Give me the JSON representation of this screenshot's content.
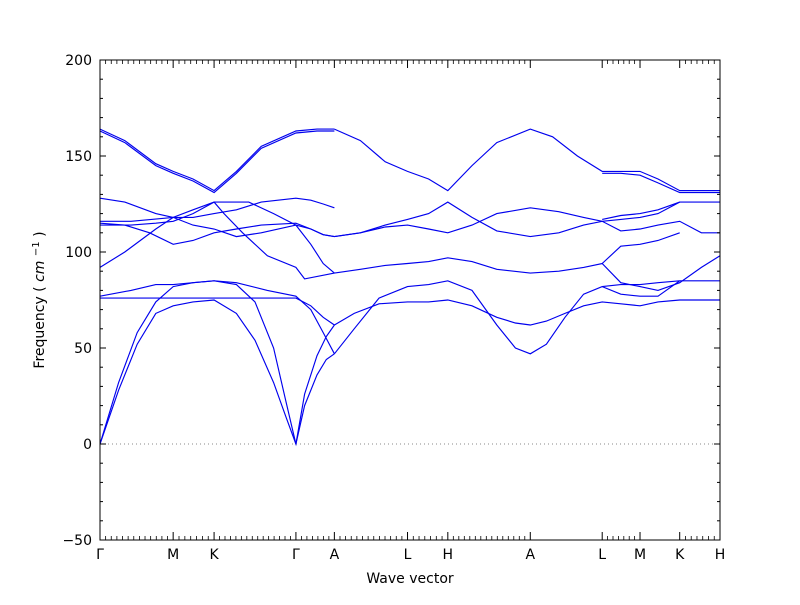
{
  "chart_data": {
    "type": "line",
    "title": "",
    "xlabel": "Wave vector",
    "ylabel": "Frequency",
    "ylabel_unit": "cm",
    "ylabel_unit_exp": "−1",
    "ylim": [
      -50,
      200
    ],
    "y_ticks": [
      -50,
      0,
      50,
      100,
      150,
      200
    ],
    "y_tick_labels": [
      "−50",
      "0",
      "50",
      "100",
      "150",
      "200"
    ],
    "grid": false,
    "legend": "none",
    "line_color": "#0000ee",
    "zero_line": {
      "y": 0,
      "style": "dotted",
      "color": "#888888"
    },
    "path_segments": [
      {
        "from": "Γ",
        "to": "M",
        "x_start": 0.0,
        "x_end": 0.118
      },
      {
        "from": "M",
        "to": "K",
        "x_start": 0.118,
        "x_end": 0.184
      },
      {
        "from": "K",
        "to": "Γ",
        "x_start": 0.184,
        "x_end": 0.316
      },
      {
        "from": "Γ",
        "to": "A",
        "x_start": 0.316,
        "x_end": 0.378
      },
      {
        "from": "A",
        "to": "L",
        "x_start": 0.378,
        "x_end": 0.496
      },
      {
        "from": "L",
        "to": "H",
        "x_start": 0.496,
        "x_end": 0.561
      },
      {
        "from": "H",
        "to": "A",
        "x_start": 0.561,
        "x_end": 0.694
      },
      {
        "from": "L",
        "to": "M",
        "x_start": 0.81,
        "x_end": 0.871
      },
      {
        "from": "K",
        "to": "H",
        "x_start": 0.935,
        "x_end": 1.0
      }
    ],
    "high_symmetry_points": [
      {
        "label": "Γ",
        "x": 0.0
      },
      {
        "label": "M",
        "x": 0.118
      },
      {
        "label": "K",
        "x": 0.184
      },
      {
        "label": "Γ",
        "x": 0.316
      },
      {
        "label": "A",
        "x": 0.378
      },
      {
        "label": "L",
        "x": 0.496
      },
      {
        "label": "H",
        "x": 0.561
      },
      {
        "label": "A",
        "x": 0.694
      },
      {
        "label": "L",
        "x": 0.81
      },
      {
        "label": "M",
        "x": 0.871
      },
      {
        "label": "K",
        "x": 0.935
      },
      {
        "label": "H",
        "x": 1.0
      }
    ],
    "xlim": [
      0.0,
      1.0
    ],
    "series": [
      {
        "values": [
          [
            0.0,
            0
          ],
          [
            0.03,
            32
          ],
          [
            0.06,
            58
          ],
          [
            0.09,
            74
          ],
          [
            0.118,
            82
          ],
          [
            0.15,
            84
          ],
          [
            0.184,
            85
          ],
          [
            0.22,
            83
          ],
          [
            0.25,
            74
          ],
          [
            0.28,
            50
          ],
          [
            0.3,
            22
          ],
          [
            0.316,
            0
          ],
          [
            0.33,
            20
          ],
          [
            0.35,
            36
          ],
          [
            0.365,
            44
          ],
          [
            0.378,
            47
          ]
        ]
      },
      {
        "values": [
          [
            0.0,
            0
          ],
          [
            0.03,
            28
          ],
          [
            0.06,
            52
          ],
          [
            0.09,
            68
          ],
          [
            0.118,
            72
          ],
          [
            0.15,
            74
          ],
          [
            0.184,
            75
          ],
          [
            0.22,
            68
          ],
          [
            0.25,
            54
          ],
          [
            0.28,
            32
          ],
          [
            0.3,
            14
          ],
          [
            0.316,
            0
          ],
          [
            0.33,
            26
          ],
          [
            0.35,
            46
          ],
          [
            0.365,
            56
          ],
          [
            0.378,
            62
          ]
        ]
      },
      {
        "values": [
          [
            0.0,
            76
          ],
          [
            0.06,
            76
          ],
          [
            0.118,
            76
          ],
          [
            0.15,
            76
          ],
          [
            0.184,
            76
          ],
          [
            0.23,
            76
          ],
          [
            0.28,
            76
          ],
          [
            0.316,
            76
          ],
          [
            0.34,
            72
          ],
          [
            0.36,
            66
          ],
          [
            0.378,
            62
          ]
        ]
      },
      {
        "values": [
          [
            0.0,
            77
          ],
          [
            0.05,
            80
          ],
          [
            0.09,
            83
          ],
          [
            0.118,
            83
          ],
          [
            0.15,
            84
          ],
          [
            0.184,
            85
          ],
          [
            0.22,
            84
          ],
          [
            0.27,
            80
          ],
          [
            0.316,
            77
          ],
          [
            0.34,
            70
          ],
          [
            0.36,
            58
          ],
          [
            0.378,
            47
          ]
        ]
      },
      {
        "values": [
          [
            0.0,
            92
          ],
          [
            0.04,
            100
          ],
          [
            0.09,
            112
          ],
          [
            0.118,
            118
          ],
          [
            0.15,
            122
          ],
          [
            0.184,
            126
          ],
          [
            0.2,
            120
          ],
          [
            0.23,
            110
          ],
          [
            0.27,
            98
          ],
          [
            0.316,
            92
          ],
          [
            0.33,
            86
          ],
          [
            0.378,
            89
          ]
        ]
      },
      {
        "values": [
          [
            0.0,
            114
          ],
          [
            0.05,
            114
          ],
          [
            0.09,
            115
          ],
          [
            0.118,
            116
          ],
          [
            0.15,
            120
          ],
          [
            0.184,
            126
          ],
          [
            0.21,
            126
          ],
          [
            0.24,
            126
          ],
          [
            0.28,
            120
          ],
          [
            0.316,
            114
          ],
          [
            0.34,
            104
          ],
          [
            0.36,
            94
          ],
          [
            0.378,
            89
          ]
        ]
      },
      {
        "values": [
          [
            0.0,
            115
          ],
          [
            0.04,
            114
          ],
          [
            0.08,
            110
          ],
          [
            0.118,
            104
          ],
          [
            0.15,
            106
          ],
          [
            0.184,
            110
          ],
          [
            0.22,
            112
          ],
          [
            0.26,
            114
          ],
          [
            0.316,
            115
          ],
          [
            0.34,
            112
          ],
          [
            0.36,
            109
          ],
          [
            0.378,
            108
          ]
        ]
      },
      {
        "values": [
          [
            0.0,
            128
          ],
          [
            0.04,
            126
          ],
          [
            0.09,
            120
          ],
          [
            0.118,
            118
          ],
          [
            0.15,
            114
          ],
          [
            0.184,
            112
          ],
          [
            0.22,
            108
          ],
          [
            0.26,
            110
          ],
          [
            0.316,
            114
          ],
          [
            0.34,
            112
          ],
          [
            0.36,
            109
          ],
          [
            0.378,
            108
          ]
        ]
      },
      {
        "values": [
          [
            0.0,
            116
          ],
          [
            0.05,
            116
          ],
          [
            0.118,
            118
          ],
          [
            0.15,
            118
          ],
          [
            0.184,
            120
          ],
          [
            0.22,
            122
          ],
          [
            0.26,
            126
          ],
          [
            0.316,
            128
          ],
          [
            0.34,
            127
          ],
          [
            0.36,
            125
          ],
          [
            0.378,
            123
          ]
        ]
      },
      {
        "values": [
          [
            0.0,
            164
          ],
          [
            0.04,
            158
          ],
          [
            0.09,
            146
          ],
          [
            0.118,
            142
          ],
          [
            0.15,
            138
          ],
          [
            0.184,
            132
          ],
          [
            0.22,
            142
          ],
          [
            0.26,
            155
          ],
          [
            0.316,
            163
          ],
          [
            0.35,
            164
          ],
          [
            0.378,
            164
          ]
        ]
      },
      {
        "values": [
          [
            0.0,
            163
          ],
          [
            0.04,
            157
          ],
          [
            0.09,
            145
          ],
          [
            0.118,
            141
          ],
          [
            0.15,
            137
          ],
          [
            0.184,
            131
          ],
          [
            0.22,
            141
          ],
          [
            0.26,
            154
          ],
          [
            0.316,
            162
          ],
          [
            0.35,
            163
          ],
          [
            0.378,
            163
          ]
        ]
      },
      {
        "values": [
          [
            0.378,
            47
          ],
          [
            0.41,
            60
          ],
          [
            0.45,
            76
          ],
          [
            0.496,
            82
          ],
          [
            0.53,
            83
          ],
          [
            0.561,
            85
          ],
          [
            0.6,
            80
          ],
          [
            0.64,
            62
          ],
          [
            0.67,
            50
          ],
          [
            0.694,
            47
          ],
          [
            0.72,
            52
          ],
          [
            0.75,
            66
          ],
          [
            0.78,
            78
          ],
          [
            0.81,
            82
          ],
          [
            0.84,
            83
          ],
          [
            0.871,
            83
          ],
          [
            0.9,
            84
          ],
          [
            0.935,
            85
          ],
          [
            0.97,
            85
          ],
          [
            1.0,
            85
          ]
        ]
      },
      {
        "values": [
          [
            0.378,
            62
          ],
          [
            0.41,
            68
          ],
          [
            0.45,
            73
          ],
          [
            0.496,
            74
          ],
          [
            0.53,
            74
          ],
          [
            0.561,
            75
          ],
          [
            0.6,
            72
          ],
          [
            0.64,
            66
          ],
          [
            0.67,
            63
          ],
          [
            0.694,
            62
          ],
          [
            0.72,
            64
          ],
          [
            0.75,
            68
          ],
          [
            0.78,
            72
          ],
          [
            0.81,
            74
          ],
          [
            0.84,
            73
          ],
          [
            0.871,
            72
          ],
          [
            0.9,
            74
          ],
          [
            0.935,
            75
          ],
          [
            0.97,
            75
          ],
          [
            1.0,
            75
          ]
        ]
      },
      {
        "values": [
          [
            0.378,
            89
          ],
          [
            0.42,
            91
          ],
          [
            0.46,
            93
          ],
          [
            0.496,
            94
          ],
          [
            0.53,
            95
          ],
          [
            0.561,
            97
          ],
          [
            0.6,
            95
          ],
          [
            0.64,
            91
          ],
          [
            0.694,
            89
          ],
          [
            0.74,
            90
          ],
          [
            0.78,
            92
          ],
          [
            0.81,
            94
          ],
          [
            0.84,
            84
          ],
          [
            0.871,
            82
          ],
          [
            0.9,
            80
          ],
          [
            0.935,
            84
          ],
          [
            0.97,
            92
          ],
          [
            1.0,
            98
          ]
        ]
      },
      {
        "values": [
          [
            0.378,
            108
          ],
          [
            0.42,
            110
          ],
          [
            0.46,
            114
          ],
          [
            0.496,
            117
          ],
          [
            0.53,
            120
          ],
          [
            0.561,
            126
          ],
          [
            0.6,
            118
          ],
          [
            0.64,
            111
          ],
          [
            0.694,
            108
          ],
          [
            0.74,
            110
          ],
          [
            0.78,
            114
          ],
          [
            0.81,
            116
          ],
          [
            0.84,
            111
          ],
          [
            0.871,
            112
          ],
          [
            0.9,
            114
          ],
          [
            0.935,
            116
          ],
          [
            0.97,
            110
          ],
          [
            1.0,
            110
          ]
        ]
      },
      {
        "values": [
          [
            0.378,
            108
          ],
          [
            0.42,
            110
          ],
          [
            0.46,
            113
          ],
          [
            0.496,
            114
          ],
          [
            0.53,
            112
          ],
          [
            0.561,
            110
          ],
          [
            0.6,
            114
          ],
          [
            0.64,
            120
          ],
          [
            0.694,
            123
          ],
          [
            0.74,
            121
          ],
          [
            0.78,
            118
          ],
          [
            0.81,
            116
          ],
          [
            0.84,
            117
          ],
          [
            0.871,
            118
          ],
          [
            0.9,
            120
          ],
          [
            0.935,
            126
          ],
          [
            0.97,
            126
          ],
          [
            1.0,
            126
          ]
        ]
      },
      {
        "values": [
          [
            0.378,
            164
          ],
          [
            0.42,
            158
          ],
          [
            0.46,
            147
          ],
          [
            0.496,
            142
          ],
          [
            0.53,
            138
          ],
          [
            0.561,
            132
          ],
          [
            0.6,
            145
          ],
          [
            0.64,
            157
          ],
          [
            0.694,
            164
          ],
          [
            0.73,
            160
          ],
          [
            0.77,
            150
          ],
          [
            0.81,
            142
          ],
          [
            0.84,
            142
          ],
          [
            0.871,
            142
          ],
          [
            0.9,
            138
          ],
          [
            0.935,
            132
          ],
          [
            0.97,
            132
          ],
          [
            1.0,
            132
          ]
        ]
      },
      {
        "values": [
          [
            0.81,
            82
          ],
          [
            0.84,
            78
          ],
          [
            0.871,
            77
          ],
          [
            0.9,
            77
          ],
          [
            0.935,
            85
          ]
        ]
      },
      {
        "values": [
          [
            0.81,
            94
          ],
          [
            0.84,
            103
          ],
          [
            0.871,
            104
          ],
          [
            0.9,
            106
          ],
          [
            0.935,
            110
          ]
        ]
      },
      {
        "values": [
          [
            0.81,
            117
          ],
          [
            0.84,
            119
          ],
          [
            0.871,
            120
          ],
          [
            0.9,
            122
          ],
          [
            0.935,
            126
          ]
        ]
      },
      {
        "values": [
          [
            0.81,
            141
          ],
          [
            0.84,
            141
          ],
          [
            0.871,
            140
          ],
          [
            0.9,
            136
          ],
          [
            0.935,
            131
          ],
          [
            0.97,
            131
          ],
          [
            1.0,
            131
          ]
        ]
      }
    ]
  }
}
